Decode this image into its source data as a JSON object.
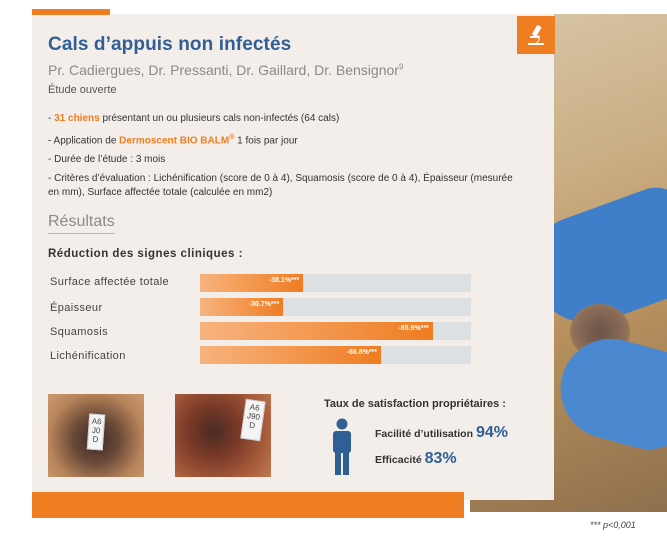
{
  "header": {
    "title": "Cals d’appuis non infectés",
    "authors": "Pr. Cadiergues, Dr. Pressanti, Dr. Gaillard, Dr. Bensignor",
    "authors_sup": "9",
    "study_type": "Étude ouverte"
  },
  "bullets": [
    {
      "prefix": "- ",
      "highlight": "31 chiens",
      "text": " présentant un ou plusieurs cals non-infectés (64 cals)"
    },
    {
      "prefix": "- Application de ",
      "highlight": "Dermoscent BIO BALM",
      "suffix": "®",
      "text": " 1 fois par jour"
    },
    {
      "prefix": "- Durée de l’étude : 3 mois"
    },
    {
      "prefix": "- Critères d’évaluation : Lichénification (score de 0 à 4), Squamosis (score de 0 à 4), Épaisseur (mesurée en mm), Surface affectée totale (calculée en mm2)"
    }
  ],
  "results": {
    "heading": "Résultats",
    "subheading": "Réduction des signes cliniques :",
    "bars": [
      {
        "label": "Surface affectée totale",
        "value_text": "-38.1%***",
        "value": 38.1
      },
      {
        "label": "Épaisseur",
        "value_text": "-30.7%***",
        "value": 30.7
      },
      {
        "label": "Squamosis",
        "value_text": "-85.9%***",
        "value": 85.9
      },
      {
        "label": "Lichénification",
        "value_text": "-66.8%***",
        "value": 66.8
      }
    ]
  },
  "photos": {
    "tag1": "A6\nJ0\nD",
    "tag2": "A6\nJ90\nD"
  },
  "satisfaction": {
    "title": "Taux de satisfaction propriétaires :",
    "items": [
      {
        "label": "Facilité d’utilisation ",
        "pct": "94%"
      },
      {
        "label": "Efficacité ",
        "pct": "83%"
      }
    ]
  },
  "footnote": "*** p<0,001",
  "colors": {
    "accent": "#ef7d22",
    "brand_blue": "#2f5f94",
    "card_bg": "#f3eeea",
    "bar_track": "#dde0e3"
  },
  "icons": {
    "corner": "microscope-icon",
    "satisfaction": "person-icon"
  }
}
